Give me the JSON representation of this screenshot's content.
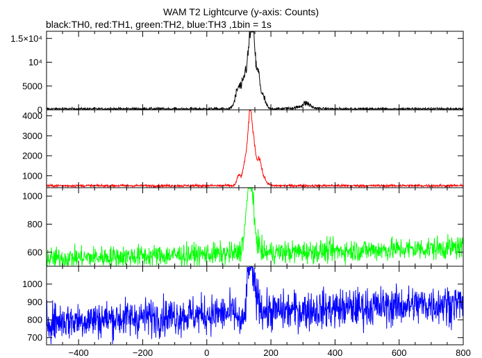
{
  "header": {
    "title": "WAM T2 Lightcurve (y-axis: Counts)",
    "subtitle": "black:TH0, red:TH1, green:TH2, blue:TH3 ,1bin = 1s"
  },
  "chart_data": [
    {
      "type": "line",
      "series": [
        {
          "name": "TH0",
          "color": "#000000",
          "baseline": 200,
          "noise": 180,
          "peaks": [
            [
              100,
              4500,
              10
            ],
            [
              122,
              7000,
              8
            ],
            [
              138,
              15500,
              7
            ],
            [
              147,
              9000,
              5
            ],
            [
              160,
              7000,
              6
            ],
            [
              175,
              2500,
              8
            ],
            [
              310,
              900,
              12
            ],
            [
              300,
              300,
              30
            ]
          ]
        }
      ],
      "xlim": [
        -500,
        800
      ],
      "ylim": [
        0,
        16500
      ],
      "yticks": [
        {
          "v": 0,
          "label": "0"
        },
        {
          "v": 5000,
          "label": "5000"
        },
        {
          "v": 10000,
          "label": "10⁴"
        },
        {
          "v": 15000,
          "label": "1.5×10⁴"
        }
      ]
    },
    {
      "type": "line",
      "series": [
        {
          "name": "TH1",
          "color": "#ff0000",
          "baseline": 500,
          "noise": 45,
          "peaks": [
            [
              100,
              500,
              6
            ],
            [
              122,
              1400,
              8
            ],
            [
              136,
              3600,
              6
            ],
            [
              148,
              1600,
              5
            ],
            [
              162,
              1200,
              7
            ],
            [
              175,
              400,
              10
            ]
          ]
        }
      ],
      "xlim": [
        -500,
        800
      ],
      "ylim": [
        400,
        4300
      ],
      "yticks": [
        {
          "v": 1000,
          "label": "1000"
        },
        {
          "v": 2000,
          "label": "2000"
        },
        {
          "v": 3000,
          "label": "3000"
        },
        {
          "v": 4000,
          "label": "4000"
        }
      ]
    },
    {
      "type": "line",
      "series": [
        {
          "name": "TH2",
          "color": "#00ff00",
          "baseline": 555,
          "trend": 0.06,
          "noise": 55,
          "peaks": [
            [
              125,
              200,
              10
            ],
            [
              136,
              460,
              7
            ],
            [
              150,
              120,
              10
            ]
          ]
        }
      ],
      "xlim": [
        -500,
        800
      ],
      "ylim": [
        500,
        1060
      ],
      "yticks": [
        {
          "v": 600,
          "label": "600"
        },
        {
          "v": 800,
          "label": "800"
        },
        {
          "v": 1000,
          "label": "1000"
        }
      ]
    },
    {
      "type": "line",
      "series": [
        {
          "name": "TH3",
          "color": "#0000ff",
          "baseline": 790,
          "trend": 0.08,
          "noise": 75,
          "dip": [
            108,
            -70,
            8
          ],
          "peaks": [
            [
              132,
              230,
              6
            ],
            [
              143,
              140,
              8
            ],
            [
              158,
              60,
              10
            ]
          ]
        }
      ],
      "xlim": [
        -500,
        800
      ],
      "ylim": [
        660,
        1100
      ],
      "yticks": [
        {
          "v": 700,
          "label": "700"
        },
        {
          "v": 800,
          "label": "800"
        },
        {
          "v": 900,
          "label": "900"
        },
        {
          "v": 1000,
          "label": "1000"
        }
      ]
    }
  ],
  "x_axis": {
    "ticks": [
      {
        "v": -400,
        "label": "−400"
      },
      {
        "v": -200,
        "label": "−200"
      },
      {
        "v": 0,
        "label": "0"
      },
      {
        "v": 200,
        "label": "200"
      },
      {
        "v": 400,
        "label": "400"
      },
      {
        "v": 600,
        "label": "600"
      },
      {
        "v": 800,
        "label": "800"
      }
    ]
  }
}
